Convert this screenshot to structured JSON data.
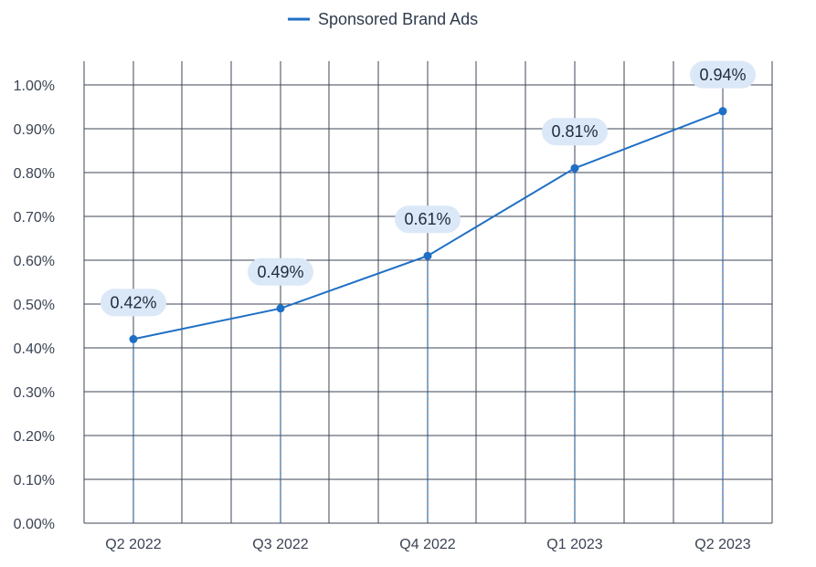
{
  "chart_data": {
    "type": "line",
    "title": "",
    "xlabel": "",
    "ylabel": "",
    "categories": [
      "Q2 2022",
      "Q3 2022",
      "Q4 2022",
      "Q1 2023",
      "Q2 2023"
    ],
    "series": [
      {
        "name": "Sponsored Brand Ads",
        "values": [
          0.42,
          0.49,
          0.61,
          0.81,
          0.94
        ],
        "labels": [
          "0.42%",
          "0.49%",
          "0.61%",
          "0.81%",
          "0.94%"
        ]
      }
    ],
    "ylim": [
      0,
      1.0
    ],
    "yticks": [
      0,
      0.1,
      0.2,
      0.3,
      0.4,
      0.5,
      0.6,
      0.7,
      0.8,
      0.9,
      1.0
    ],
    "ytick_labels": [
      "0.00%",
      "0.10%",
      "0.20%",
      "0.30%",
      "0.40%",
      "0.50%",
      "0.60%",
      "0.70%",
      "0.80%",
      "0.90%",
      "1.00%"
    ],
    "grid": true,
    "legend_position": "top-center"
  },
  "colors": {
    "series": "#1f6fc5",
    "label_bg": "#dbe8f7",
    "grid": "#3e4654"
  },
  "legend": {
    "label": "Sponsored Brand Ads"
  }
}
